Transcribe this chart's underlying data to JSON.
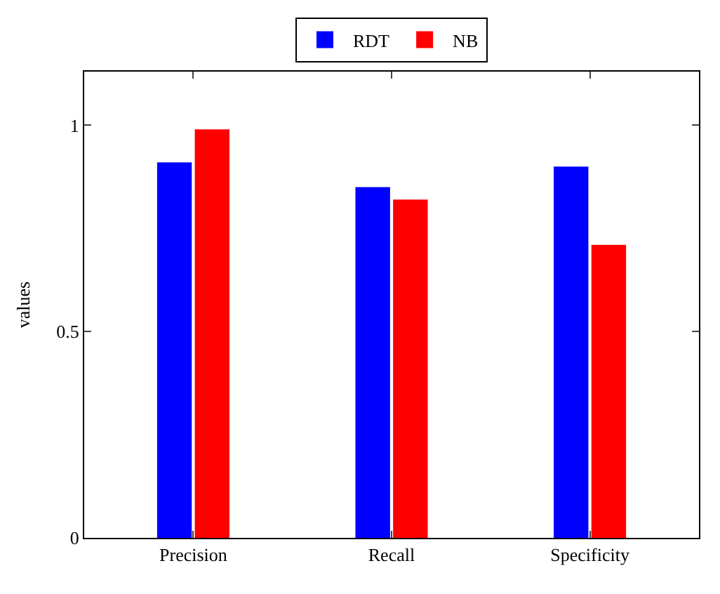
{
  "chart_data": {
    "type": "bar",
    "ylabel": "values",
    "categories": [
      "Precision",
      "Recall",
      "Specificity"
    ],
    "series": [
      {
        "name": "RDT",
        "color": "#0000ff",
        "values": [
          0.91,
          0.85,
          0.9
        ]
      },
      {
        "name": "NB",
        "color": "#ff0000",
        "values": [
          0.99,
          0.82,
          0.71
        ]
      }
    ],
    "ylim": [
      0,
      1.13
    ],
    "yticks": [
      0,
      0.5,
      1
    ],
    "legend": "top"
  }
}
